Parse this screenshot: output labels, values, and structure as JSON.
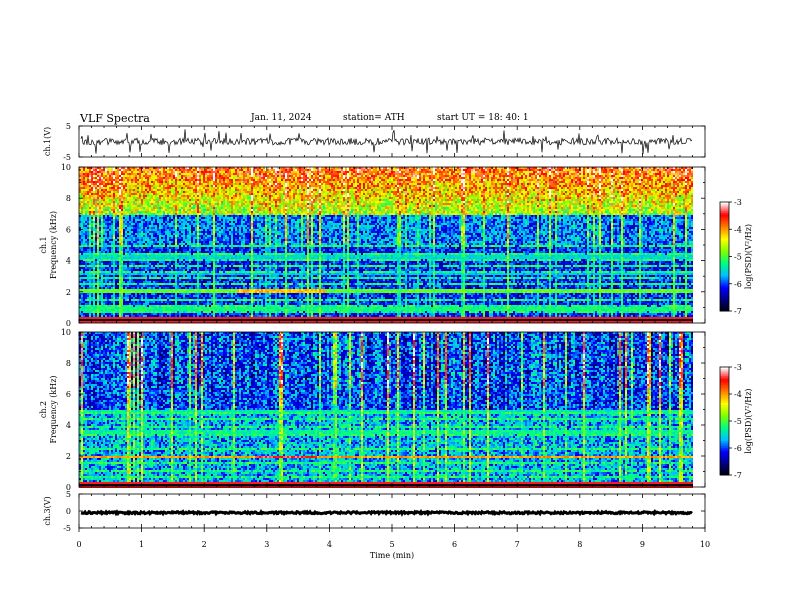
{
  "header": {
    "title": "VLF Spectra",
    "date": "Jan. 11, 2024",
    "station": "station= ATH",
    "start": "start UT = 18: 40: 1"
  },
  "colors": {
    "colormap": [
      "#000000",
      "#00007f",
      "#0000ff",
      "#00bfff",
      "#00ff80",
      "#80ff00",
      "#ffff00",
      "#ff8000",
      "#ff0000",
      "#ffffff"
    ]
  },
  "chart_data": [
    {
      "type": "line",
      "name": "ch.1 waveform",
      "ylabel": "ch.1(V)",
      "ylim": [
        -5,
        5
      ],
      "yticks": [
        5,
        -5
      ],
      "xlim": [
        0,
        10
      ],
      "baseline": 0
    },
    {
      "type": "heatmap",
      "name": "ch.1 spectrogram",
      "ylabel": "Frequency (kHz)",
      "channel_label": "ch.1",
      "ylim": [
        0,
        10
      ],
      "yticks": [
        0,
        2,
        4,
        6,
        8,
        10
      ],
      "xlim": [
        0,
        9.8
      ],
      "colorbar": {
        "label": "log(PSD)(V²/Hz)",
        "ticks": [
          -3,
          -4,
          -5,
          -6,
          -7
        ]
      },
      "bands": [
        {
          "freq": 2.1,
          "level": -4.9
        },
        {
          "freq": 1.0,
          "level": -5.2
        },
        {
          "freq": 3.2,
          "level": -5.6
        },
        {
          "freq": 4.3,
          "level": -5.5
        }
      ]
    },
    {
      "type": "heatmap",
      "name": "ch.2 spectrogram",
      "ylabel": "Frequency (kHz)",
      "channel_label": "ch.2",
      "ylim": [
        0,
        10
      ],
      "yticks": [
        0,
        2,
        4,
        6,
        8,
        10
      ],
      "xlim": [
        0,
        9.8
      ],
      "colorbar": {
        "label": "log(PSD)(V²/Hz)",
        "ticks": [
          -3,
          -4,
          -5,
          -6,
          -7
        ]
      },
      "bands": [
        {
          "freq": 2.0,
          "level": -4.0
        },
        {
          "freq": 3.6,
          "level": -5.3
        },
        {
          "freq": 4.9,
          "level": -5.4
        }
      ]
    },
    {
      "type": "line",
      "name": "ch.3 waveform",
      "ylabel": "ch.3(V)",
      "ylim": [
        -5,
        5
      ],
      "yticks": [
        5,
        0,
        -5
      ],
      "xlim": [
        0,
        10
      ],
      "baseline": -0.5
    }
  ],
  "xaxis": {
    "label": "Time (min)",
    "ticks": [
      0,
      1,
      2,
      3,
      4,
      5,
      6,
      7,
      8,
      9,
      10
    ]
  }
}
